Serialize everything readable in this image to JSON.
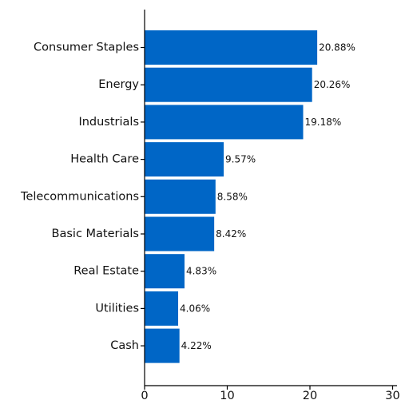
{
  "chart_data": {
    "type": "bar",
    "orientation": "horizontal",
    "categories": [
      "Consumer Staples",
      "Energy",
      "Industrials",
      "Health Care",
      "Telecommunications",
      "Basic Materials",
      "Real Estate",
      "Utilities",
      "Cash"
    ],
    "values": [
      20.88,
      20.26,
      19.18,
      9.57,
      8.58,
      8.42,
      4.83,
      4.06,
      4.22
    ],
    "data_labels": [
      "20.88%",
      "20.26%",
      "19.18%",
      "9.57%",
      "8.58%",
      "8.42%",
      "4.83%",
      "4.06%",
      "4.22%"
    ],
    "xlim": [
      0,
      30
    ],
    "xticks": [
      "0",
      "10",
      "20",
      "30"
    ],
    "title": "",
    "xlabel": "",
    "ylabel": "",
    "grid": false,
    "legend": "none",
    "bar_color": "#0066c6"
  }
}
